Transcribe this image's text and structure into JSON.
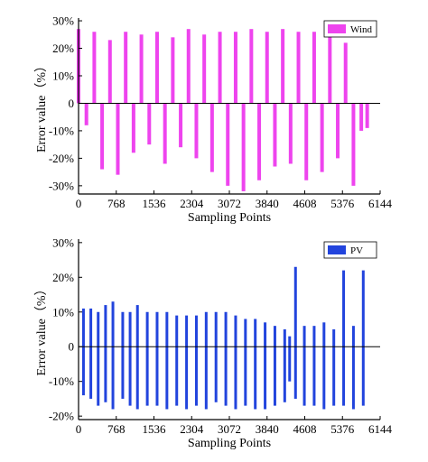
{
  "chart_data": [
    {
      "type": "bar",
      "series": [
        {
          "name": "Wind",
          "color": "#ee44ee"
        }
      ],
      "xlabel": "Sampling Points",
      "ylabel": "Error value（%）",
      "xlim": [
        0,
        6144
      ],
      "ylim": [
        -33,
        31
      ],
      "xticks": [
        0,
        768,
        1536,
        2304,
        3072,
        3840,
        4608,
        5376,
        6144
      ],
      "xtick_labels": [
        "0",
        "768",
        "1536",
        "2304",
        "3072",
        "3840",
        "4608",
        "5376",
        "6144"
      ],
      "yticks": [
        30,
        20,
        10,
        0,
        -10,
        -20,
        -30
      ],
      "ytick_labels": [
        "30%",
        "20%",
        "10%",
        "0",
        "-10%",
        "-20%",
        "-30%"
      ],
      "legend_position": "top-right",
      "grid": false,
      "x": [
        0,
        160,
        320,
        480,
        640,
        800,
        960,
        1120,
        1280,
        1440,
        1600,
        1760,
        1920,
        2080,
        2240,
        2400,
        2560,
        2720,
        2880,
        3040,
        3200,
        3360,
        3520,
        3680,
        3840,
        4000,
        4160,
        4320,
        4480,
        4640,
        4800,
        4960,
        5120,
        5280,
        5440,
        5600,
        5760,
        5880
      ],
      "values": [
        27,
        -8,
        26,
        -24,
        23,
        -26,
        26,
        -18,
        25,
        -15,
        26,
        -22,
        24,
        -16,
        27,
        -20,
        25,
        -25,
        26,
        -30,
        26,
        -32,
        27,
        -28,
        26,
        -23,
        27,
        -22,
        26,
        -28,
        26,
        -25,
        26,
        -20,
        22,
        -30,
        -10,
        -9
      ]
    },
    {
      "type": "bar",
      "series": [
        {
          "name": "PV",
          "color": "#2244dd"
        }
      ],
      "xlabel": "Sampling Points",
      "ylabel": "Error value（%）",
      "xlim": [
        0,
        6144
      ],
      "ylim": [
        -21,
        31
      ],
      "xticks": [
        0,
        768,
        1536,
        2304,
        3072,
        3840,
        4608,
        5376,
        6144
      ],
      "xtick_labels": [
        "0",
        "768",
        "1536",
        "2304",
        "3072",
        "3840",
        "4608",
        "5376",
        "6144"
      ],
      "yticks": [
        30,
        20,
        10,
        0,
        -10,
        -20
      ],
      "ytick_labels": [
        "30%",
        "20%",
        "10%",
        "0",
        "-10%",
        "-20%"
      ],
      "legend_position": "top-right",
      "grid": false,
      "x": [
        100,
        250,
        400,
        550,
        700,
        900,
        1050,
        1200,
        1400,
        1600,
        1800,
        2000,
        2200,
        2400,
        2600,
        2800,
        3000,
        3200,
        3400,
        3600,
        3800,
        4000,
        4200,
        4300,
        4420,
        4600,
        4800,
        5000,
        5200,
        5400,
        5600,
        5800
      ],
      "pos": [
        11,
        11,
        10,
        12,
        13,
        10,
        10,
        12,
        10,
        10,
        10,
        9,
        9,
        9,
        10,
        10,
        10,
        9,
        8,
        8,
        7,
        6,
        5,
        3,
        23,
        6,
        6,
        7,
        5,
        22,
        6,
        22
      ],
      "neg": [
        -14,
        -15,
        -17,
        -16,
        -18,
        -15,
        -17,
        -18,
        -17,
        -17,
        -18,
        -17,
        -18,
        -17,
        -18,
        -16,
        -17,
        -18,
        -17,
        -18,
        -18,
        -17,
        -16,
        -10,
        -15,
        -17,
        -17,
        -18,
        -17,
        -17,
        -18,
        -17
      ]
    }
  ]
}
